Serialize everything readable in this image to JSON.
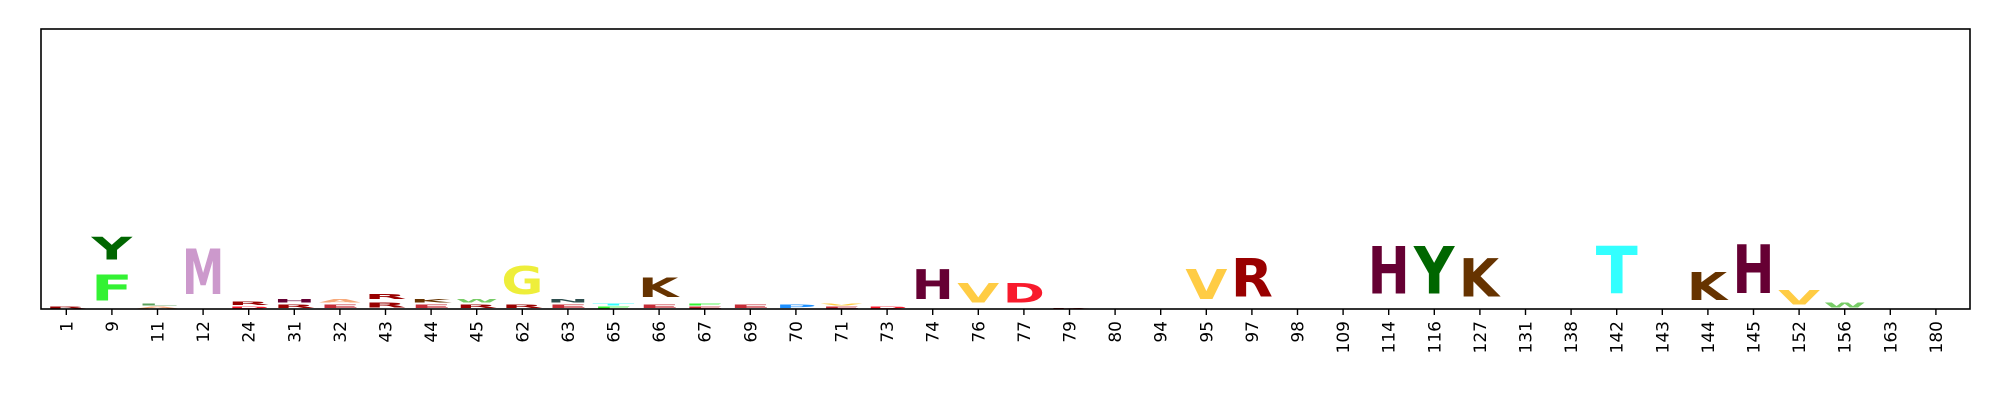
{
  "chart_data": {
    "type": "sequence-logo",
    "title": "",
    "xlabel": "",
    "ylabel": "",
    "y_axis_ticks_shown": false,
    "grid": false,
    "positions": [
      "1",
      "9",
      "11",
      "12",
      "24",
      "31",
      "32",
      "43",
      "44",
      "45",
      "62",
      "63",
      "65",
      "66",
      "67",
      "69",
      "70",
      "71",
      "73",
      "74",
      "76",
      "77",
      "79",
      "80",
      "94",
      "95",
      "97",
      "98",
      "109",
      "114",
      "116",
      "127",
      "131",
      "138",
      "142",
      "143",
      "144",
      "145",
      "152",
      "156",
      "163",
      "180"
    ],
    "stacks": [
      [
        {
          "letter": "R",
          "height": 0.01
        }
      ],
      [
        {
          "letter": "F",
          "height": 0.15
        },
        {
          "letter": "Y",
          "height": 0.13
        }
      ],
      [
        {
          "letter": "A",
          "height": 0.01
        },
        {
          "letter": "L",
          "height": 0.01
        }
      ],
      [
        {
          "letter": "M",
          "height": 0.26
        }
      ],
      [
        {
          "letter": "D",
          "height": 0.01
        },
        {
          "letter": "R",
          "height": 0.02
        }
      ],
      [
        {
          "letter": "R",
          "height": 0.02
        },
        {
          "letter": "H",
          "height": 0.02
        }
      ],
      [
        {
          "letter": "E",
          "height": 0.02
        },
        {
          "letter": "A",
          "height": 0.02
        }
      ],
      [
        {
          "letter": "R",
          "height": 0.03
        },
        {
          "letter": "R",
          "height": 0.03
        }
      ],
      [
        {
          "letter": "E",
          "height": 0.02
        },
        {
          "letter": "K",
          "height": 0.02
        }
      ],
      [
        {
          "letter": "R",
          "height": 0.02
        },
        {
          "letter": "W",
          "height": 0.02
        }
      ],
      [
        {
          "letter": "R",
          "height": 0.02
        },
        {
          "letter": "G",
          "height": 0.16
        }
      ],
      [
        {
          "letter": "E",
          "height": 0.02
        },
        {
          "letter": "N",
          "height": 0.02
        }
      ],
      [
        {
          "letter": "F",
          "height": 0.01
        },
        {
          "letter": "T",
          "height": 0.01
        }
      ],
      [
        {
          "letter": "E",
          "height": 0.02
        },
        {
          "letter": "K",
          "height": 0.11
        }
      ],
      [
        {
          "letter": "E",
          "height": 0.01
        },
        {
          "letter": "F",
          "height": 0.01
        }
      ],
      [
        {
          "letter": "E",
          "height": 0.02
        }
      ],
      [
        {
          "letter": "P",
          "height": 0.02
        }
      ],
      [
        {
          "letter": "E",
          "height": 0.01
        },
        {
          "letter": "V",
          "height": 0.01
        }
      ],
      [
        {
          "letter": "D",
          "height": 0.01
        }
      ],
      [
        {
          "letter": "H",
          "height": 0.17
        }
      ],
      [
        {
          "letter": "V",
          "height": 0.11
        }
      ],
      [
        {
          "letter": "D",
          "height": 0.11
        }
      ],
      [
        {
          "letter": "R",
          "height": 0.005
        }
      ],
      [],
      [
        {
          "letter": "R",
          "height": 0.003
        }
      ],
      [
        {
          "letter": "V",
          "height": 0.17
        }
      ],
      [
        {
          "letter": "R",
          "height": 0.22
        }
      ],
      [],
      [],
      [
        {
          "letter": "H",
          "height": 0.27
        }
      ],
      [
        {
          "letter": "Y",
          "height": 0.27
        }
      ],
      [
        {
          "letter": "K",
          "height": 0.22
        }
      ],
      [],
      [],
      [
        {
          "letter": "T",
          "height": 0.27
        }
      ],
      [],
      [
        {
          "letter": "K",
          "height": 0.16
        }
      ],
      [
        {
          "letter": "H",
          "height": 0.28
        }
      ],
      [
        {
          "letter": "V",
          "height": 0.08
        }
      ],
      [
        {
          "letter": "W",
          "height": 0.03
        }
      ],
      [],
      []
    ],
    "colors": {
      "A": "#f7a97a",
      "D": "#f81a2c",
      "E": "#c42b36",
      "F": "#33f233",
      "G": "#eeee3a",
      "H": "#660033",
      "K": "#663300",
      "L": "#5aa05a",
      "M": "#cc99cc",
      "N": "#2e4f4f",
      "P": "#1e90ff",
      "R": "#990000",
      "T": "#33ffff",
      "V": "#ffcc44",
      "W": "#77cc66",
      "Y": "#006600"
    }
  }
}
